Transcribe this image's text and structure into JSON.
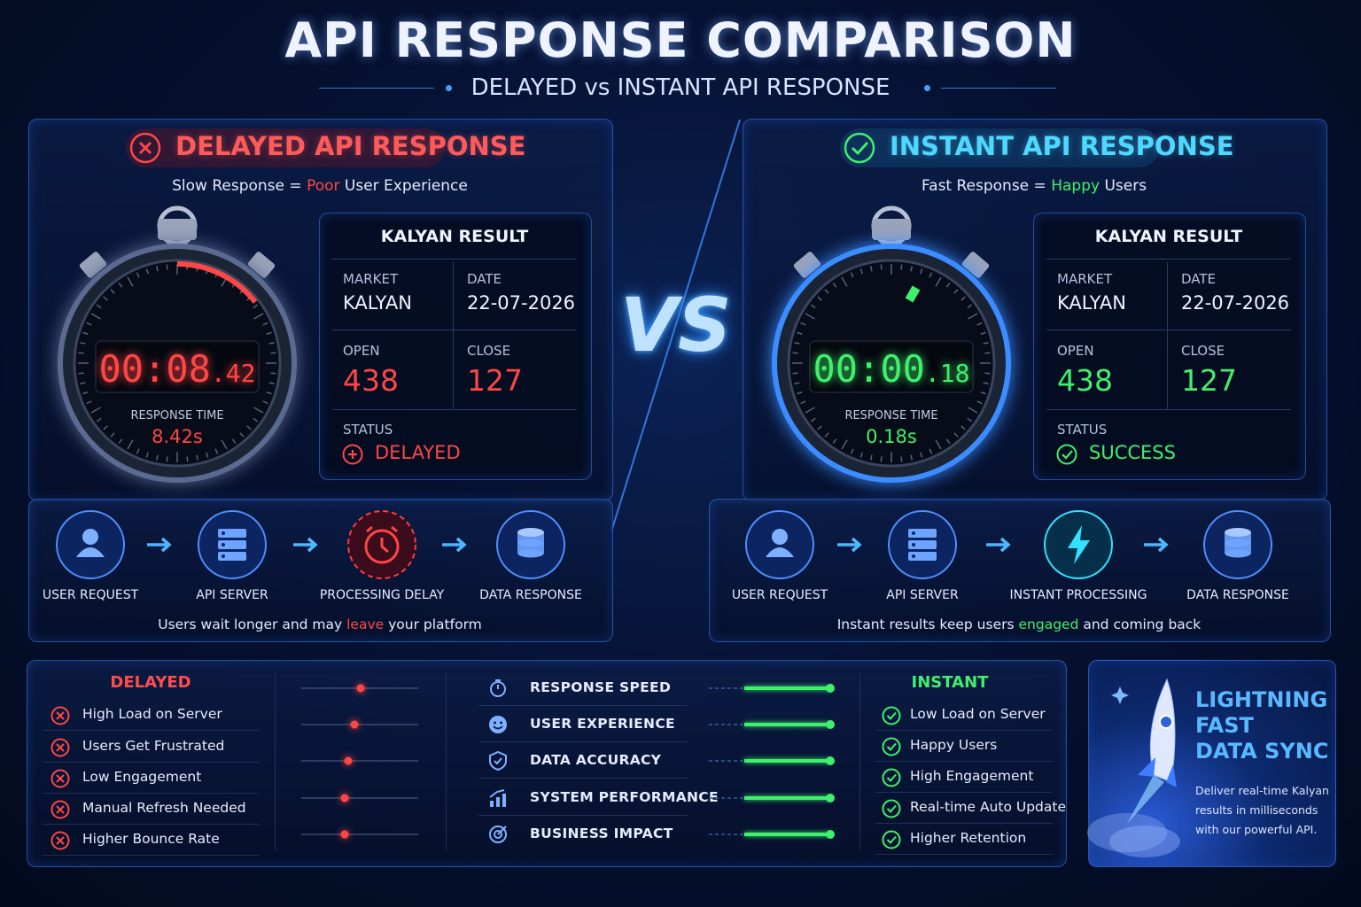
{
  "header": {
    "title": "API RESPONSE COMPARISON",
    "subtitle": "DELAYED vs INSTANT API RESPONSE"
  },
  "vs": "VS",
  "delayed": {
    "title": "DELAYED API RESPONSE",
    "tagline": {
      "before": "Slow Response =",
      "highlight": "Poor",
      "after": "User Experience"
    },
    "timer": {
      "main": "00:08",
      "fraction": ".42",
      "label": "RESPONSE TIME",
      "value": "8.42s"
    },
    "result": {
      "title": "KALYAN RESULT",
      "market_label": "MARKET",
      "market": "KALYAN",
      "date_label": "DATE",
      "date": "22-07-2026",
      "open_label": "OPEN",
      "open": 438,
      "close_label": "CLOSE",
      "close": 127,
      "status_label": "STATUS",
      "status": "DELAYED"
    },
    "flow": {
      "steps": [
        "USER REQUEST",
        "API SERVER",
        "PROCESSING DELAY",
        "DATA RESPONSE"
      ],
      "note": {
        "before": "Users wait longer and may",
        "highlight": "leave",
        "after": "your platform"
      }
    }
  },
  "instant": {
    "title": "INSTANT API RESPONSE",
    "tagline": {
      "before": "Fast Response =",
      "highlight": "Happy",
      "after": "Users"
    },
    "timer": {
      "main": "00:00",
      "fraction": ".18",
      "label": "RESPONSE TIME",
      "value": "0.18s"
    },
    "result": {
      "title": "KALYAN RESULT",
      "market_label": "MARKET",
      "market": "KALYAN",
      "date_label": "DATE",
      "date": "22-07-2026",
      "open_label": "OPEN",
      "open": 438,
      "close_label": "CLOSE",
      "close": 127,
      "status_label": "STATUS",
      "status": "SUCCESS"
    },
    "flow": {
      "steps": [
        "USER REQUEST",
        "API SERVER",
        "INSTANT PROCESSING",
        "DATA RESPONSE"
      ],
      "note": {
        "before": "Instant results keep users",
        "highlight": "engaged",
        "after": "and coming back"
      }
    }
  },
  "comparison": {
    "delayed_title": "DELAYED",
    "delayed_items": [
      "High Load on Server",
      "Users Get Frustrated",
      "Low Engagement",
      "Manual Refresh Needed",
      "Higher Bounce Rate"
    ],
    "metrics": [
      "RESPONSE SPEED",
      "USER EXPERIENCE",
      "DATA ACCURACY",
      "SYSTEM PERFORMANCE",
      "BUSINESS IMPACT"
    ],
    "instant_title": "INSTANT",
    "instant_items": [
      "Low Load on Server",
      "Happy Users",
      "High Engagement",
      "Real-time Auto Update",
      "Higher Retention"
    ]
  },
  "promo": {
    "title": [
      "LIGHTNING",
      "FAST",
      "DATA SYNC"
    ],
    "text": [
      "Deliver real-time Kalyan",
      "results in milliseconds",
      "with our powerful API."
    ]
  }
}
